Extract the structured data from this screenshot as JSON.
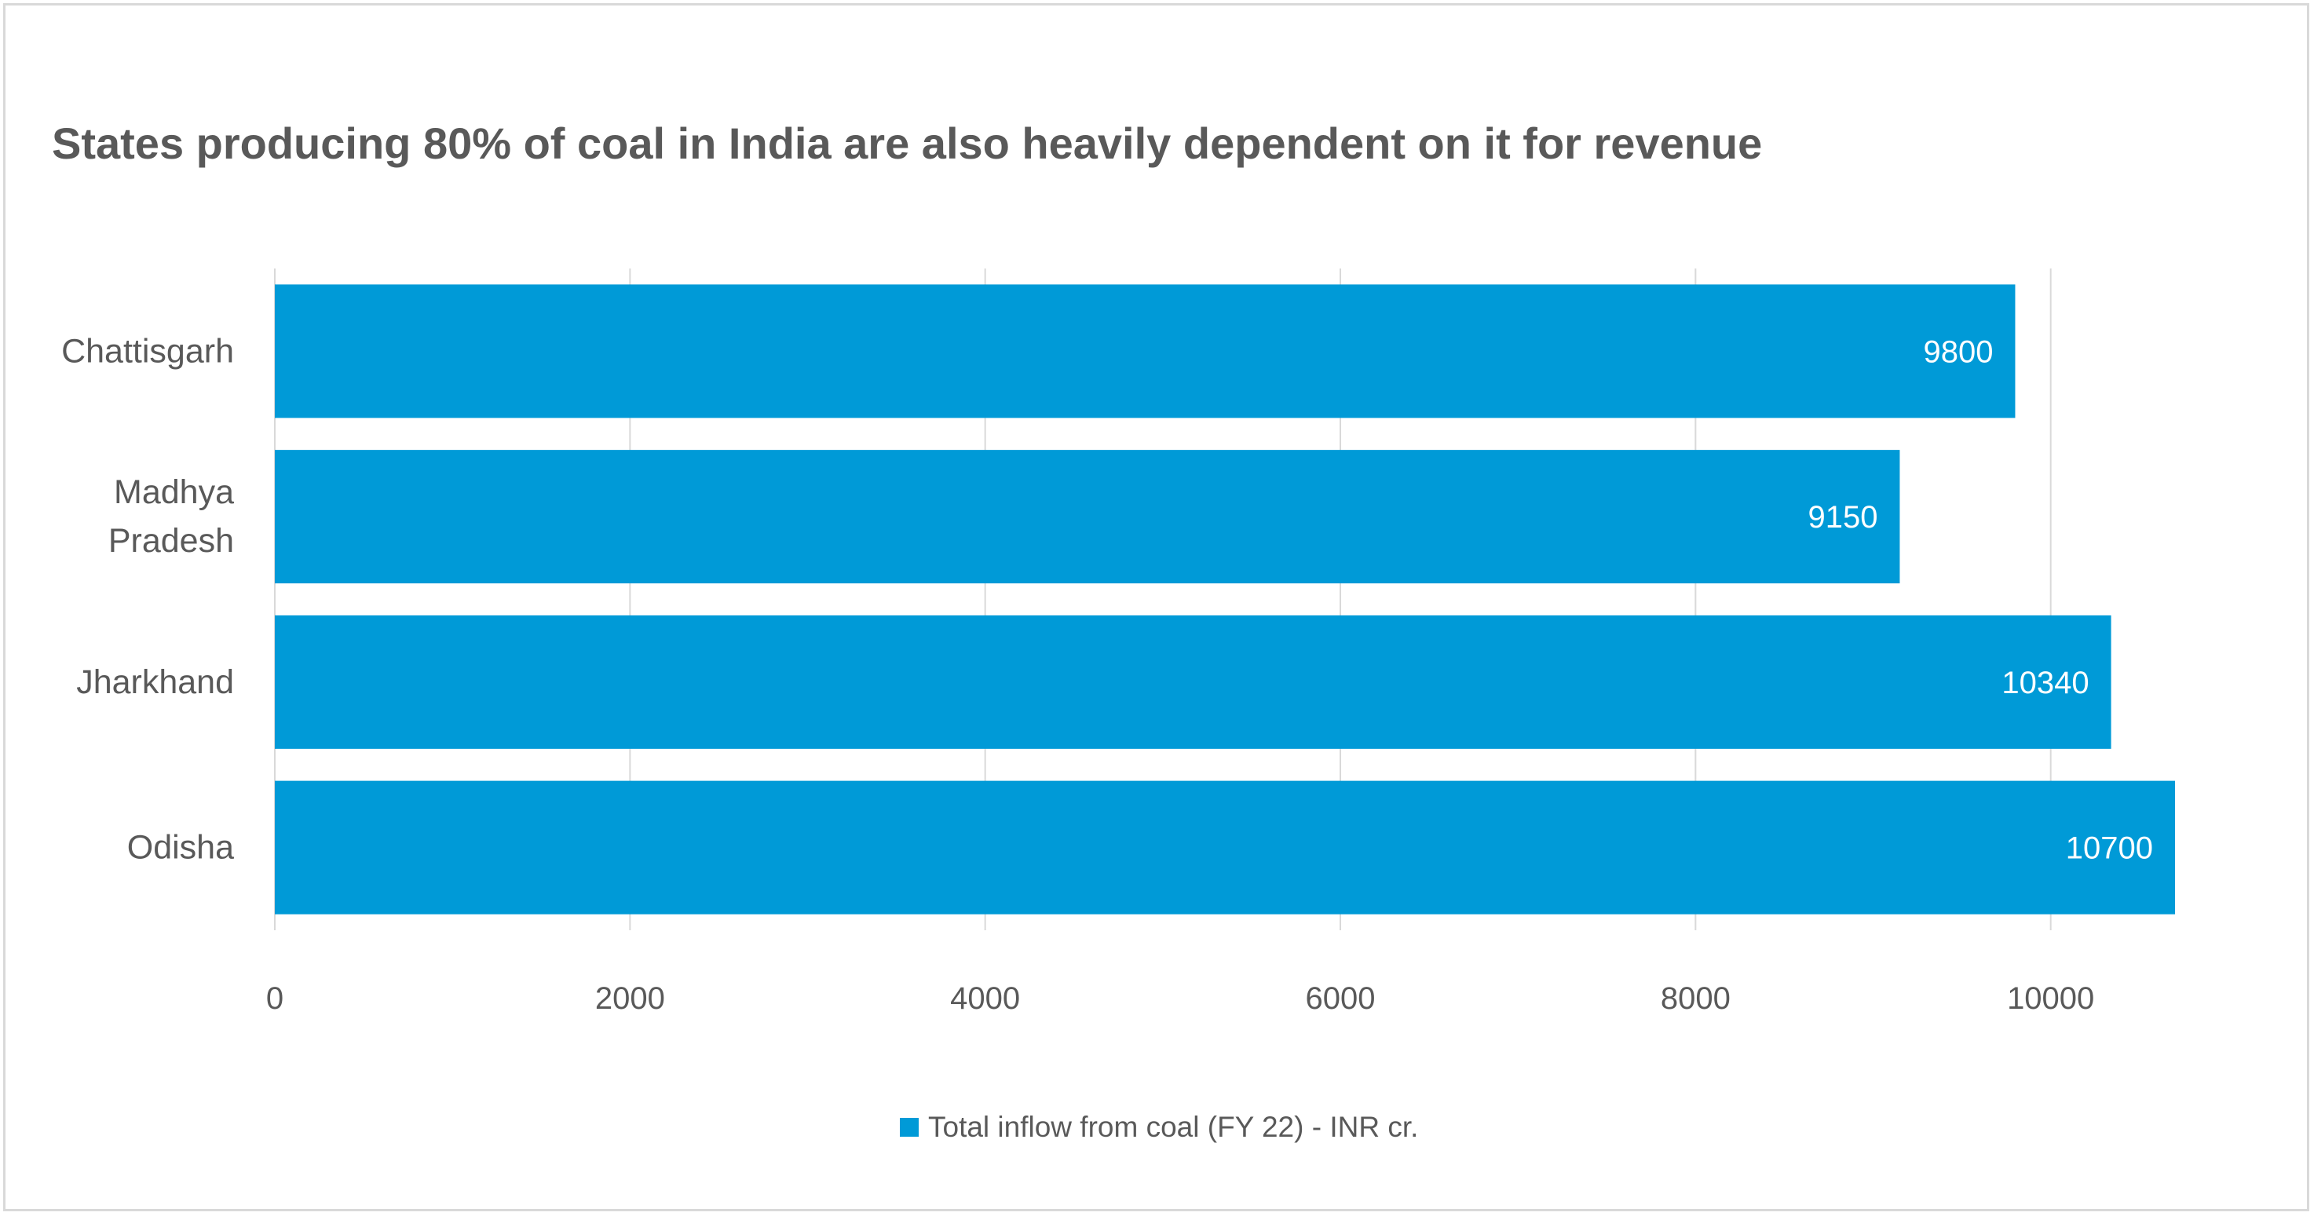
{
  "title": "States producing 80% of coal in India are also heavily dependent on it for revenue",
  "legend": {
    "label": "Total inflow from coal (FY 22) - INR cr.",
    "color": "#009ad7"
  },
  "chart_data": {
    "type": "bar",
    "orientation": "horizontal",
    "title": "States producing 80% of coal in India are also heavily dependent on it for revenue",
    "categories": [
      [
        "Chattisgarh"
      ],
      [
        "Madhya",
        "Pradesh"
      ],
      [
        "Jharkhand"
      ],
      [
        "Odisha"
      ]
    ],
    "series": [
      {
        "name": "Total inflow from coal (FY 22) - INR cr.",
        "values": [
          9800,
          9150,
          10340,
          10700
        ],
        "color": "#009ad7"
      }
    ],
    "xlim": [
      0,
      10700
    ],
    "xticks": [
      0,
      2000,
      4000,
      6000,
      8000,
      10000
    ],
    "grid": true,
    "data_labels": true,
    "legend_position": "bottom",
    "colors": {
      "bar": "#009ad7",
      "grid": "#d9d9d9",
      "text": "#595959",
      "label": "#ffffff"
    }
  }
}
